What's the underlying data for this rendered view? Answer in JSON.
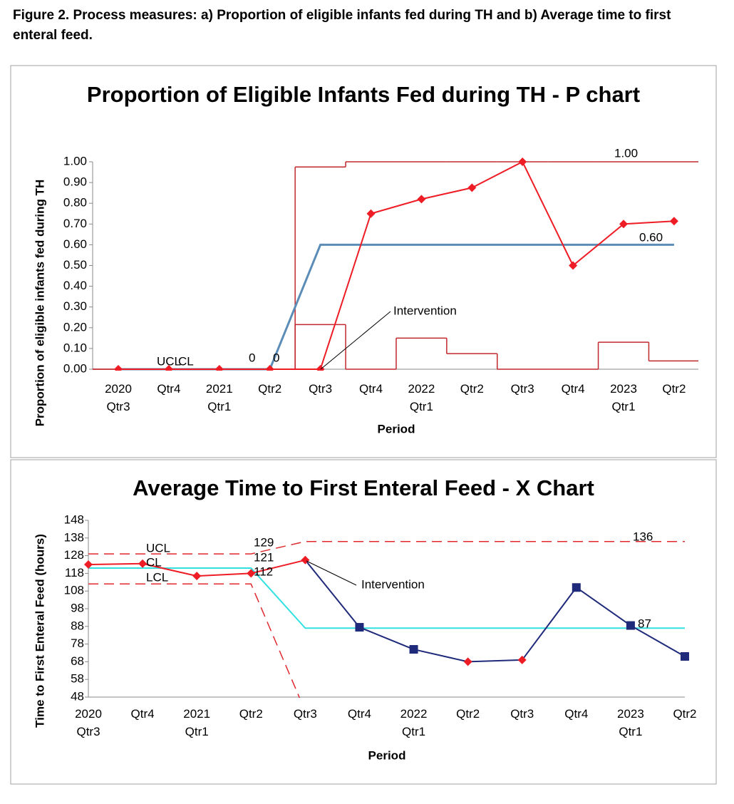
{
  "caption": "Figure 2. Process measures: a) Proportion of eligible infants fed during TH and b) Average time to first enteral feed.",
  "chart_data": [
    {
      "type": "line",
      "title": "Proportion of Eligible Infants Fed during TH - P chart",
      "xlabel": "Period",
      "ylabel": "Proportion of eligible infants fed during TH",
      "categories": [
        "2020\nQtr3",
        "Qtr4",
        "2021\nQtr1",
        "Qtr2",
        "Qtr3",
        "Qtr4",
        "2022\nQtr1",
        "Qtr2",
        "Qtr3",
        "Qtr4",
        "2023\nQtr1",
        "Qtr2"
      ],
      "ylim": [
        0,
        1
      ],
      "yticks": [
        {
          "value": 0,
          "label": "0.00"
        },
        {
          "value": 0.1,
          "label": "0.10"
        },
        {
          "value": 0.2,
          "label": "0.20"
        },
        {
          "value": 0.3,
          "label": "0.30"
        },
        {
          "value": 0.4,
          "label": "0.40"
        },
        {
          "value": 0.5,
          "label": "0.50"
        },
        {
          "value": 0.6,
          "label": "0.60"
        },
        {
          "value": 0.7,
          "label": "0.70"
        },
        {
          "value": 0.8,
          "label": "0.80"
        },
        {
          "value": 0.9,
          "label": "0.90"
        },
        {
          "value": 1,
          "label": "1.00"
        }
      ],
      "series": [
        {
          "color": "#c0282e",
          "line": "step",
          "values": [
            0,
            0,
            0,
            0,
            0.975,
            1,
            1,
            1,
            1,
            1,
            1,
            1
          ]
        },
        {
          "color": "#c0282e",
          "line": "step",
          "values": [
            0,
            0,
            0,
            0,
            0.215,
            0,
            0.15,
            0.075,
            0,
            0,
            0.13,
            0.04
          ]
        },
        {
          "color": "#5b8db8",
          "line": "solid",
          "width": 3,
          "values": [
            0,
            0,
            0,
            0,
            0.6,
            0.6,
            0.6,
            0.6,
            0.6,
            0.6,
            0.6,
            0.6
          ]
        },
        {
          "color": "#ee1c25",
          "line": "solid",
          "width": 2,
          "marker": "diamond",
          "values": [
            0,
            0,
            0,
            0,
            0,
            0.75,
            0.82,
            0.875,
            1.0,
            0.5,
            0.7,
            0.714
          ]
        }
      ],
      "annotations": [
        "1.00",
        "0.60",
        "0",
        "0",
        "UCL",
        "CL",
        "Intervention"
      ]
    },
    {
      "type": "line",
      "title": "Average Time to First Enteral Feed - X Chart",
      "xlabel": "Period",
      "ylabel": "Time to First Enteral Feed (hours)",
      "categories": [
        "2020\nQtr3",
        "Qtr4",
        "2021\nQtr1",
        "Qtr2",
        "Qtr3",
        "Qtr4",
        "2022\nQtr1",
        "Qtr2",
        "Qtr3",
        "Qtr4",
        "2023\nQtr1",
        "Qtr2"
      ],
      "ylim": [
        48,
        148
      ],
      "yticks": [
        48,
        58,
        68,
        78,
        88,
        98,
        108,
        118,
        128,
        138,
        148
      ],
      "series": [
        {
          "color": "#e0282e",
          "line": "dashed",
          "values": [
            129,
            129,
            129,
            129,
            136,
            136,
            136,
            136,
            136,
            136,
            136,
            136
          ]
        },
        {
          "color": "#e0282e",
          "line": "dashed",
          "values": [
            112,
            112,
            112,
            112,
            40,
            null,
            null,
            null,
            null,
            null,
            null,
            null
          ]
        },
        {
          "color": "#33e0e0",
          "line": "solid",
          "width": 2,
          "values": [
            121,
            121,
            121,
            121,
            87,
            87,
            87,
            87,
            87,
            87,
            87,
            87
          ]
        },
        {
          "color": "#1f2a7a",
          "line": "segments",
          "width": 2,
          "segment_colors": [
            "#ee1c25",
            "#ee1c25",
            "#ee1c25",
            "#ee1c25",
            "#1f2a7a",
            "#1f2a7a",
            "#1f2a7a",
            "#1f2a7a",
            "#1f2a7a",
            "#1f2a7a",
            "#1f2a7a"
          ],
          "point_colors": [
            "#ee1c25",
            "#ee1c25",
            "#ee1c25",
            "#ee1c25",
            "#ee1c25",
            "#1f2a7a",
            "#1f2a7a",
            "#ee1c25",
            "#ee1c25",
            "#1f2a7a",
            "#1f2a7a",
            "#1f2a7a"
          ],
          "point_shapes": [
            "diamond",
            "diamond",
            "diamond",
            "diamond",
            "diamond",
            "square",
            "square",
            "diamond",
            "diamond",
            "square",
            "square",
            "square"
          ],
          "values": [
            123,
            123.5,
            116.5,
            118,
            125.5,
            87.5,
            75,
            68,
            69,
            110,
            88.5,
            71
          ]
        }
      ],
      "annotations": [
        "UCL",
        "CL",
        "LCL",
        "129",
        "121",
        "112",
        "136",
        "87",
        "Intervention"
      ]
    }
  ]
}
